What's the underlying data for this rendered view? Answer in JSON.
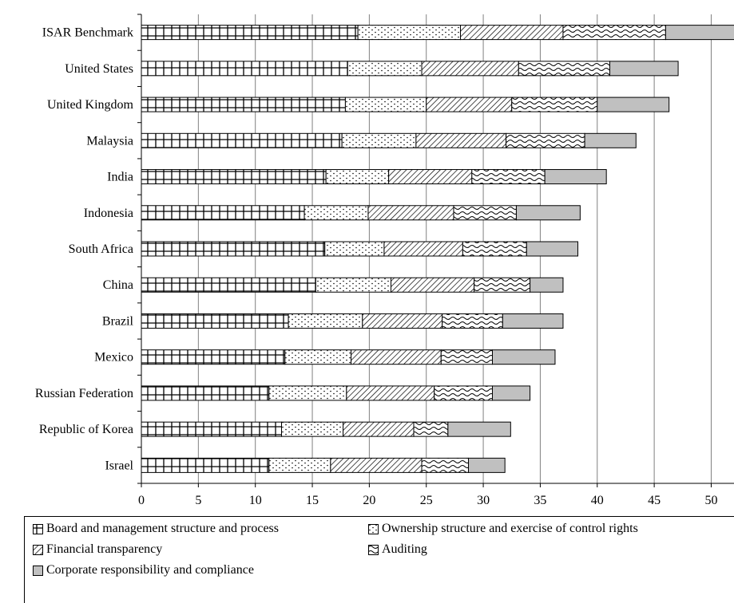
{
  "chart_data": {
    "type": "bar",
    "orientation": "horizontal",
    "stacked": true,
    "title": "",
    "xlabel": "",
    "ylabel": "",
    "xlim": [
      0,
      52
    ],
    "xticks": [
      0,
      5,
      10,
      15,
      20,
      25,
      30,
      35,
      40,
      45,
      50
    ],
    "grid": "vertical",
    "legend_position": "bottom",
    "categories": [
      "ISAR Benchmark",
      "United States",
      "United Kingdom",
      "Malaysia",
      "India",
      "Indonesia",
      "South Africa",
      "China",
      "Brazil",
      "Mexico",
      "Russian Federation",
      "Republic of Korea",
      "Israel"
    ],
    "series": [
      {
        "name": "Board and management structure and process",
        "pattern": "grid",
        "values": [
          19.0,
          18.1,
          17.9,
          17.6,
          16.2,
          14.3,
          16.1,
          15.3,
          12.9,
          12.6,
          11.2,
          12.3,
          11.2
        ]
      },
      {
        "name": "Ownership structure and exercise of control rights",
        "pattern": "dots",
        "values": [
          9.0,
          6.5,
          7.1,
          6.5,
          5.5,
          5.6,
          5.2,
          6.6,
          6.5,
          5.8,
          6.8,
          5.4,
          5.4
        ]
      },
      {
        "name": "Financial transparency",
        "pattern": "diagonal",
        "values": [
          9.0,
          8.5,
          7.5,
          7.9,
          7.3,
          7.5,
          6.9,
          7.3,
          7.0,
          7.9,
          7.7,
          6.2,
          8.0
        ]
      },
      {
        "name": "Auditing",
        "pattern": "wave",
        "values": [
          9.0,
          8.0,
          7.5,
          6.9,
          6.4,
          5.5,
          5.6,
          4.9,
          5.3,
          4.5,
          5.1,
          3.0,
          4.1
        ]
      },
      {
        "name": "Corporate responsibility and compliance",
        "pattern": "solid",
        "color": "#c0c0c0",
        "values": [
          6.5,
          6.0,
          6.3,
          4.5,
          5.4,
          5.6,
          4.5,
          2.9,
          5.3,
          5.5,
          3.3,
          5.5,
          3.2
        ]
      }
    ]
  }
}
